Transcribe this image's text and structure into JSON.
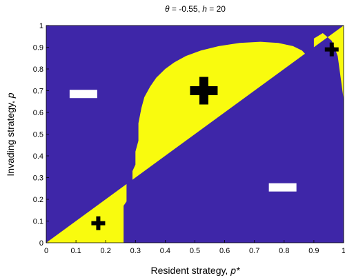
{
  "chart_data": {
    "type": "heatmap",
    "title_parts": {
      "theta_symbol": "θ",
      "theta_value": " = -0.55, ",
      "h_symbol": "h",
      "h_value": " = 20"
    },
    "xlabel_parts": {
      "text": "Resident strategy, ",
      "symbol": "p*"
    },
    "ylabel_parts": {
      "text": "Invading strategy, ",
      "symbol": "p"
    },
    "xlim": [
      0,
      1
    ],
    "ylim": [
      0,
      1
    ],
    "x_ticks": [
      "0",
      "0.1",
      "0.2",
      "0.3",
      "0.4",
      "0.5",
      "0.6",
      "0.7",
      "0.8",
      "0.9",
      "1"
    ],
    "y_ticks": [
      "0",
      "0.1",
      "0.2",
      "0.3",
      "0.4",
      "0.5",
      "0.6",
      "0.7",
      "0.8",
      "0.9",
      "1"
    ],
    "regions": {
      "negative_color": "#3e26a8",
      "positive_color": "#f9fb0e"
    },
    "boundary": {
      "lower_left": [
        [
          0.0,
          0.0
        ],
        [
          0.27,
          0.27
        ],
        [
          0.27,
          0.19
        ],
        [
          0.26,
          0.17
        ],
        [
          0.26,
          0.0
        ]
      ],
      "upper_curve": [
        [
          0.29,
          0.29
        ],
        [
          0.29,
          0.33
        ],
        [
          0.3,
          0.36
        ],
        [
          0.3,
          0.42
        ],
        [
          0.31,
          0.47
        ],
        [
          0.31,
          0.55
        ],
        [
          0.32,
          0.62
        ],
        [
          0.33,
          0.67
        ],
        [
          0.35,
          0.72
        ],
        [
          0.37,
          0.76
        ],
        [
          0.4,
          0.8
        ],
        [
          0.43,
          0.83
        ],
        [
          0.47,
          0.86
        ],
        [
          0.52,
          0.885
        ],
        [
          0.58,
          0.905
        ],
        [
          0.65,
          0.92
        ],
        [
          0.72,
          0.925
        ],
        [
          0.78,
          0.92
        ],
        [
          0.83,
          0.905
        ],
        [
          0.86,
          0.885
        ],
        [
          0.87,
          0.87
        ]
      ],
      "upper_right_curve": [
        [
          0.9,
          0.9
        ],
        [
          0.9,
          0.94
        ],
        [
          0.93,
          0.965
        ],
        [
          0.96,
          0.93
        ],
        [
          0.98,
          0.86
        ],
        [
          0.99,
          0.76
        ],
        [
          1.0,
          0.66
        ],
        [
          1.0,
          1.0
        ]
      ]
    },
    "annotations": [
      {
        "type": "plus",
        "x": 0.53,
        "y": 0.7,
        "size": "large"
      },
      {
        "type": "plus",
        "x": 0.175,
        "y": 0.09,
        "size": "small"
      },
      {
        "type": "plus",
        "x": 0.96,
        "y": 0.89,
        "size": "small"
      },
      {
        "type": "minus",
        "x": 0.125,
        "y": 0.685
      },
      {
        "type": "minus",
        "x": 0.795,
        "y": 0.255
      }
    ]
  }
}
